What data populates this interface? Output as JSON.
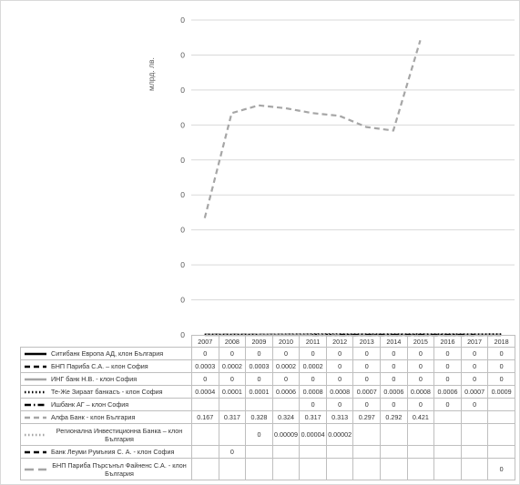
{
  "chart_data": {
    "type": "line",
    "title": "",
    "ylabel": "млрд. лв.",
    "ylim": [
      0,
      0.45
    ],
    "y_tick_labels": [
      "0",
      "0",
      "0",
      "0",
      "0",
      "0",
      "0",
      "0",
      "0",
      "0"
    ],
    "categories": [
      "2007",
      "2008",
      "2009",
      "2010",
      "2011",
      "2012",
      "2013",
      "2014",
      "2015",
      "2016",
      "2017",
      "2018"
    ],
    "series": [
      {
        "name": "Ситибанк Европа АД, клон България",
        "style": "solid",
        "color": "#000000",
        "values": [
          0,
          0,
          0,
          0,
          0,
          0,
          0,
          0,
          0,
          0,
          0,
          0
        ],
        "labels": [
          "0",
          "0",
          "0",
          "0",
          "0",
          "0",
          "0",
          "0",
          "0",
          "0",
          "0",
          "0"
        ]
      },
      {
        "name": "БНП Париба С.А. – клон София",
        "style": "dash",
        "color": "#000000",
        "values": [
          0.0003,
          0.0002,
          0.0003,
          0.0002,
          0.0002,
          0,
          0,
          0,
          0,
          0,
          0,
          0
        ],
        "labels": [
          "0.0003",
          "0.0002",
          "0.0003",
          "0.0002",
          "0.0002",
          "0",
          "0",
          "0",
          "0",
          "0",
          "0",
          "0"
        ]
      },
      {
        "name": "ИНГ банк Н.В. - клон София",
        "style": "solid",
        "color": "#a6a6a6",
        "values": [
          0,
          0,
          0,
          0,
          0,
          0,
          0,
          0,
          0,
          0,
          0,
          0
        ],
        "labels": [
          "0",
          "0",
          "0",
          "0",
          "0",
          "0",
          "0",
          "0",
          "0",
          "0",
          "0",
          "0"
        ]
      },
      {
        "name": "Те-Же Зираат банкасъ - клон София",
        "style": "dot",
        "color": "#000000",
        "values": [
          0.0004,
          0.0001,
          0.0001,
          0.0006,
          0.0008,
          0.0008,
          0.0007,
          0.0006,
          0.0008,
          0.0006,
          0.0007,
          0.0009
        ],
        "labels": [
          "0.0004",
          "0.0001",
          "0.0001",
          "0.0006",
          "0.0008",
          "0.0008",
          "0.0007",
          "0.0006",
          "0.0008",
          "0.0006",
          "0.0007",
          "0.0009"
        ]
      },
      {
        "name": "Ишбанк АГ – клон София",
        "style": "dashdot",
        "color": "#000000",
        "values": [
          null,
          null,
          null,
          null,
          0,
          0,
          0,
          0,
          0,
          0,
          0,
          null
        ],
        "labels": [
          "",
          "",
          "",
          "",
          "0",
          "0",
          "0",
          "0",
          "0",
          "0",
          "0",
          ""
        ]
      },
      {
        "name": "Алфа Банк - клон България",
        "style": "dash",
        "color": "#a6a6a6",
        "values": [
          0.167,
          0.317,
          0.328,
          0.324,
          0.317,
          0.313,
          0.297,
          0.292,
          0.421,
          null,
          null,
          null
        ],
        "labels": [
          "0.167",
          "0.317",
          "0.328",
          "0.324",
          "0.317",
          "0.313",
          "0.297",
          "0.292",
          "0.421",
          "",
          "",
          ""
        ]
      },
      {
        "name": "Регионална Инвестиционна Банка – клон България",
        "style": "dot",
        "color": "#a6a6a6",
        "values": [
          null,
          null,
          0,
          9e-05,
          4e-05,
          2e-05,
          null,
          null,
          null,
          null,
          null,
          null
        ],
        "labels": [
          "",
          "",
          "0",
          "0.00009",
          "0.00004",
          "0.00002",
          "",
          "",
          "",
          "",
          "",
          ""
        ]
      },
      {
        "name": "Банк Леуми Румъния С. А. - клон София",
        "style": "dash",
        "color": "#000000",
        "values": [
          null,
          0,
          null,
          null,
          null,
          null,
          null,
          null,
          null,
          null,
          null,
          null
        ],
        "labels": [
          "",
          "0",
          "",
          "",
          "",
          "",
          "",
          "",
          "",
          "",
          "",
          ""
        ]
      },
      {
        "name": "БНП Париба Пърсънъл Файненс С.А. - клон България",
        "style": "longdash",
        "color": "#a6a6a6",
        "values": [
          null,
          null,
          null,
          null,
          null,
          null,
          null,
          null,
          null,
          null,
          null,
          0
        ],
        "labels": [
          "",
          "",
          "",
          "",
          "",
          "",
          "",
          "",
          "",
          "",
          "",
          "0"
        ]
      }
    ]
  }
}
